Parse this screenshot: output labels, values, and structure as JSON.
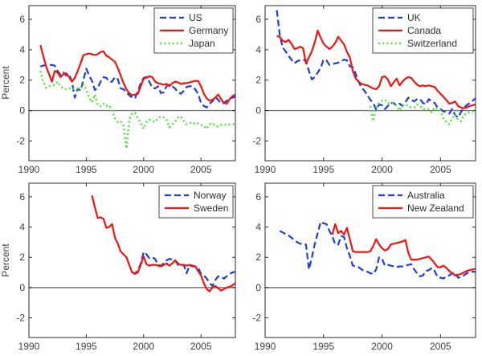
{
  "figure": {
    "background": "#ffffff",
    "axis_color": "#2b2b2b",
    "tick_label_color": "#3f3f3f",
    "zero_line_color": "#7a7a7a",
    "legend_border_color": "#4a4a4a",
    "legend_text_color": "#2f2f2f",
    "ylabel": "Percent",
    "x_ticks": [
      "1990",
      "1995",
      "2000",
      "2005"
    ],
    "y_ticks": [
      "-2",
      "0",
      "2",
      "4",
      "6"
    ],
    "colors": {
      "blue": "#1f3dd9",
      "red": "#f01511",
      "green": "#4fe437"
    }
  },
  "chart_data": [
    {
      "type": "line",
      "panel": "top-left",
      "ylabel": "Percent",
      "x_range": [
        1990,
        2008
      ],
      "y_range": [
        -3.3,
        6.9
      ],
      "x_tick_values": [
        1990,
        1995,
        2000,
        2005
      ],
      "y_tick_values": [
        -2,
        0,
        2,
        4,
        6
      ],
      "legend_position": "top-right",
      "series": [
        {
          "name": "US",
          "color": "blue",
          "style": "dashed",
          "x_start": 1991.0,
          "x_step": 0.25,
          "values": [
            2.9,
            2.95,
            3.0,
            3.0,
            3.0,
            2.95,
            2.6,
            2.35,
            2.5,
            2.3,
            2.4,
            1.9,
            0.85,
            1.45,
            1.3,
            2.0,
            2.75,
            2.3,
            1.95,
            1.35,
            1.5,
            1.9,
            2.2,
            2.15,
            1.9,
            1.9,
            2.2,
            2.05,
            1.45,
            1.4,
            1.2,
            1.0,
            0.85,
            0.8,
            1.3,
            1.8,
            2.15,
            2.2,
            1.9,
            1.5,
            1.45,
            1.6,
            1.15,
            1.2,
            1.6,
            1.7,
            1.6,
            1.45,
            1.2,
            1.1,
            1.3,
            1.55,
            1.6,
            1.6,
            1.4,
            1.1,
            0.5,
            0.3,
            0.2,
            0.45,
            0.6,
            0.9,
            0.7,
            0.45,
            0.5,
            0.65,
            0.8,
            0.85,
            0.9
          ]
        },
        {
          "name": "Germany",
          "color": "red",
          "style": "solid",
          "x_start": 1991.0,
          "x_step": 0.25,
          "values": [
            4.3,
            3.6,
            2.9,
            2.4,
            1.9,
            2.6,
            2.5,
            2.2,
            2.4,
            2.45,
            2.2,
            1.9,
            2.15,
            2.6,
            3.1,
            3.65,
            3.7,
            3.75,
            3.7,
            3.65,
            3.7,
            3.85,
            3.9,
            3.6,
            3.5,
            3.35,
            3.2,
            2.8,
            2.3,
            1.8,
            1.4,
            1.15,
            1.0,
            1.05,
            1.1,
            1.6,
            2.1,
            2.15,
            2.25,
            2.2,
            1.9,
            1.8,
            1.75,
            1.7,
            1.75,
            1.6,
            1.8,
            1.9,
            1.85,
            1.75,
            1.8,
            1.8,
            1.85,
            1.9,
            1.95,
            1.95,
            1.6,
            1.1,
            0.8,
            0.65,
            0.7,
            0.85,
            1.05,
            0.75,
            0.5,
            0.45,
            0.75,
            0.95,
            1.05
          ]
        },
        {
          "name": "Japan",
          "color": "green",
          "style": "dotted",
          "x_start": 1991.0,
          "x_step": 0.25,
          "values": [
            2.6,
            1.9,
            1.5,
            1.6,
            1.65,
            1.7,
            1.9,
            1.6,
            1.45,
            1.4,
            1.45,
            1.5,
            1.4,
            1.45,
            1.5,
            1.75,
            1.35,
            0.85,
            0.55,
            1.05,
            0.35,
            0.3,
            0.45,
            0.3,
            0.35,
            0.0,
            -0.5,
            -0.75,
            -0.7,
            -1.0,
            -2.5,
            -0.6,
            -0.2,
            -0.15,
            -0.5,
            -0.8,
            -1.2,
            -0.75,
            -0.6,
            -0.7,
            -0.75,
            -0.5,
            -0.4,
            -0.45,
            -0.6,
            -1.1,
            -0.9,
            -0.75,
            -0.45,
            -0.4,
            -0.7,
            -0.9,
            -0.85,
            -0.75,
            -0.9,
            -0.85,
            -0.95,
            -1.0,
            -1.2,
            -0.9,
            -0.85,
            -1.0,
            -1.05,
            -0.95,
            -0.9,
            -0.95,
            -0.9,
            -0.9,
            -0.9
          ]
        }
      ]
    },
    {
      "type": "line",
      "panel": "top-right",
      "ylabel": "",
      "x_range": [
        1990,
        2008
      ],
      "y_range": [
        -3.3,
        6.9
      ],
      "x_tick_values": [
        1990,
        1995,
        2000,
        2005
      ],
      "y_tick_values": [
        -2,
        0,
        2,
        4,
        6
      ],
      "legend_position": "top-right",
      "series": [
        {
          "name": "UK",
          "color": "blue",
          "style": "dashed",
          "x_start": 1991.0,
          "x_step": 0.25,
          "values": [
            6.6,
            5.0,
            4.15,
            3.9,
            3.6,
            3.35,
            3.1,
            3.25,
            3.3,
            3.35,
            3.25,
            2.6,
            2.05,
            2.2,
            2.5,
            2.8,
            3.35,
            3.3,
            3.0,
            3.05,
            3.1,
            3.15,
            3.25,
            3.35,
            3.3,
            2.9,
            2.85,
            2.4,
            1.9,
            1.5,
            1.3,
            1.0,
            0.7,
            0.5,
            0.05,
            0.4,
            0.35,
            0.1,
            0.3,
            0.5,
            0.5,
            0.3,
            0.45,
            0.3,
            0.55,
            0.85,
            0.7,
            0.6,
            0.75,
            0.75,
            0.5,
            0.4,
            0.75,
            0.6,
            0.5,
            0.2,
            0.1,
            -0.05,
            -0.1,
            -0.2,
            0.1,
            -0.3,
            -0.45,
            -0.1,
            0.2,
            0.35,
            0.5,
            0.65,
            0.8
          ]
        },
        {
          "name": "Canada",
          "color": "red",
          "style": "solid",
          "x_start": 1991.0,
          "x_step": 0.25,
          "values": [
            4.9,
            4.85,
            4.6,
            4.5,
            4.65,
            4.4,
            4.05,
            4.1,
            4.2,
            4.1,
            3.1,
            3.5,
            3.9,
            4.5,
            5.25,
            4.8,
            4.4,
            4.2,
            4.05,
            4.2,
            4.45,
            4.85,
            4.6,
            4.35,
            3.85,
            3.5,
            2.6,
            2.1,
            1.9,
            1.75,
            1.7,
            1.65,
            1.55,
            1.45,
            1.4,
            1.6,
            2.2,
            2.25,
            2.05,
            1.6,
            1.85,
            2.1,
            1.65,
            1.9,
            2.1,
            2.2,
            2.15,
            1.9,
            1.7,
            1.6,
            1.65,
            1.6,
            1.65,
            1.6,
            1.55,
            1.3,
            1.1,
            0.9,
            0.7,
            0.45,
            0.5,
            0.6,
            0.3,
            0.2,
            0.15,
            0.2,
            0.3,
            0.35,
            0.4
          ]
        },
        {
          "name": "Switzerland",
          "color": "green",
          "style": "dotted",
          "x_start": 1999.0,
          "x_step": 0.25,
          "values": [
            0.3,
            -0.7,
            0.2,
            0.5,
            0.65,
            0.7,
            0.5,
            0.45,
            0.5,
            0.3,
            0.0,
            0.3,
            0.4,
            0.3,
            0.2,
            0.2,
            0.4,
            0.3,
            0.1,
            0.05,
            0.1,
            -0.1,
            0.2,
            0.1,
            0.0,
            -0.5,
            -0.75,
            -0.9,
            -0.5,
            -0.25,
            -0.6,
            -0.7,
            -0.3,
            -0.15,
            -0.1,
            -0.05,
            0.0
          ]
        }
      ]
    },
    {
      "type": "line",
      "panel": "bottom-left",
      "ylabel": "Percent",
      "x_range": [
        1990,
        2008
      ],
      "y_range": [
        -3.3,
        6.9
      ],
      "x_tick_values": [
        1990,
        1995,
        2000,
        2005
      ],
      "y_tick_values": [
        -2,
        0,
        2,
        4,
        6
      ],
      "legend_position": "top-right",
      "series": [
        {
          "name": "Norway",
          "color": "blue",
          "style": "dashed",
          "x_start": 1999.0,
          "x_step": 0.25,
          "values": [
            1.0,
            0.95,
            1.1,
            1.6,
            2.35,
            2.2,
            1.95,
            2.0,
            1.9,
            1.5,
            1.45,
            1.6,
            1.8,
            1.9,
            1.85,
            1.8,
            1.5,
            1.5,
            1.5,
            0.95,
            1.45,
            1.4,
            1.4,
            1.35,
            0.9,
            0.8,
            0.6,
            0.3,
            0.1,
            0.5,
            0.75,
            0.7,
            0.6,
            0.75,
            0.9,
            1.0,
            1.05
          ]
        },
        {
          "name": "Sweden",
          "color": "red",
          "style": "solid",
          "x_start": 1995.5,
          "x_step": 0.25,
          "values": [
            6.1,
            5.3,
            4.6,
            4.65,
            4.55,
            3.95,
            4.0,
            4.2,
            3.3,
            2.9,
            2.4,
            2.2,
            2.0,
            1.5,
            1.0,
            0.9,
            1.0,
            1.5,
            2.05,
            1.55,
            1.45,
            1.5,
            1.5,
            1.45,
            1.4,
            1.5,
            1.6,
            1.45,
            1.6,
            1.8,
            1.6,
            1.5,
            1.5,
            1.45,
            1.5,
            1.45,
            1.4,
            1.1,
            0.8,
            0.3,
            -0.1,
            -0.25,
            0.0,
            0.1,
            -0.05,
            -0.2,
            -0.1,
            0.0,
            0.05,
            0.15,
            0.3
          ]
        }
      ]
    },
    {
      "type": "line",
      "panel": "bottom-right",
      "ylabel": "",
      "x_range": [
        1990,
        2008
      ],
      "y_range": [
        -3.3,
        6.9
      ],
      "x_tick_values": [
        1990,
        1995,
        2000,
        2005
      ],
      "y_tick_values": [
        -2,
        0,
        2,
        4,
        6
      ],
      "legend_position": "top-right",
      "series": [
        {
          "name": "Australia",
          "color": "blue",
          "style": "dashed",
          "x_start": 1991.25,
          "x_step": 0.25,
          "values": [
            3.75,
            3.65,
            3.55,
            3.45,
            3.3,
            3.15,
            3.0,
            2.9,
            2.85,
            2.85,
            1.2,
            2.0,
            2.9,
            3.6,
            4.35,
            4.25,
            4.2,
            3.75,
            3.4,
            2.85,
            2.85,
            3.4,
            3.35,
            2.6,
            2.1,
            1.45,
            1.4,
            1.35,
            1.2,
            1.1,
            1.05,
            0.95,
            0.9,
            1.2,
            2.0,
            1.9,
            1.45,
            1.5,
            1.45,
            1.4,
            1.35,
            1.4,
            1.4,
            1.45,
            1.5,
            1.55,
            1.2,
            0.95,
            0.75,
            0.8,
            1.1,
            1.15,
            1.3,
            1.1,
            0.7,
            0.65,
            0.6,
            0.75,
            0.8,
            0.95,
            1.0,
            0.65,
            0.7,
            0.8,
            0.95,
            1.0,
            1.05,
            1.05
          ]
        },
        {
          "name": "New Zealand",
          "color": "red",
          "style": "solid",
          "x_start": 1995.75,
          "x_step": 0.25,
          "values": [
            3.5,
            4.2,
            3.6,
            3.75,
            3.5,
            3.95,
            3.2,
            2.4,
            2.35,
            2.35,
            2.35,
            2.35,
            2.35,
            2.4,
            2.75,
            3.2,
            2.85,
            2.6,
            2.45,
            2.55,
            2.85,
            2.9,
            2.95,
            3.0,
            3.05,
            3.15,
            2.3,
            1.85,
            1.85,
            1.85,
            1.9,
            1.95,
            2.0,
            2.05,
            1.85,
            1.6,
            1.35,
            1.35,
            1.45,
            1.3,
            1.1,
            0.95,
            0.8,
            0.85,
            0.9,
            1.0,
            1.1,
            1.15,
            1.2,
            1.25
          ]
        }
      ]
    }
  ]
}
